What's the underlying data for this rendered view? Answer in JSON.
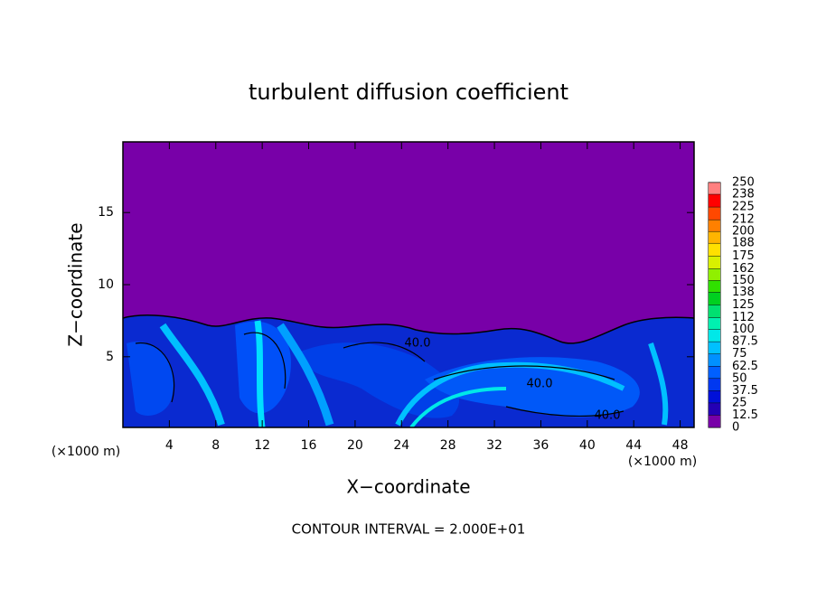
{
  "chart_data": {
    "type": "contour",
    "title": "turbulent diffusion coefficient",
    "xlabel": "X−coordinate",
    "ylabel": "Z−coordinate",
    "x_unit": "(×1000 m)",
    "note": "CONTOUR INTERVAL = 2.000E+01",
    "xlim": [
      0,
      49.2
    ],
    "xticks": [
      4,
      8,
      12,
      16,
      20,
      24,
      28,
      32,
      36,
      40,
      44,
      48
    ],
    "ylim": [
      0.1,
      19.9
    ],
    "yticks": [
      5,
      10,
      15
    ],
    "contour_labels": [
      "40.0",
      "40.0",
      "40.0"
    ],
    "colorbar": {
      "levels": [
        0,
        12.5,
        25,
        37.5,
        50,
        62.5,
        75,
        87.5,
        100,
        112,
        125,
        138,
        150,
        162,
        175,
        188,
        200,
        212,
        225,
        238,
        250
      ],
      "colors": [
        "#7800a8",
        "#2400b4",
        "#0010d8",
        "#0038f0",
        "#0060ff",
        "#0090ff",
        "#00c0ff",
        "#00e8e8",
        "#00f0b0",
        "#00e070",
        "#00d020",
        "#30e000",
        "#90f000",
        "#d8f000",
        "#ffe000",
        "#ffb400",
        "#ff8000",
        "#ff4800",
        "#ff0000",
        "#ff8080"
      ]
    }
  }
}
